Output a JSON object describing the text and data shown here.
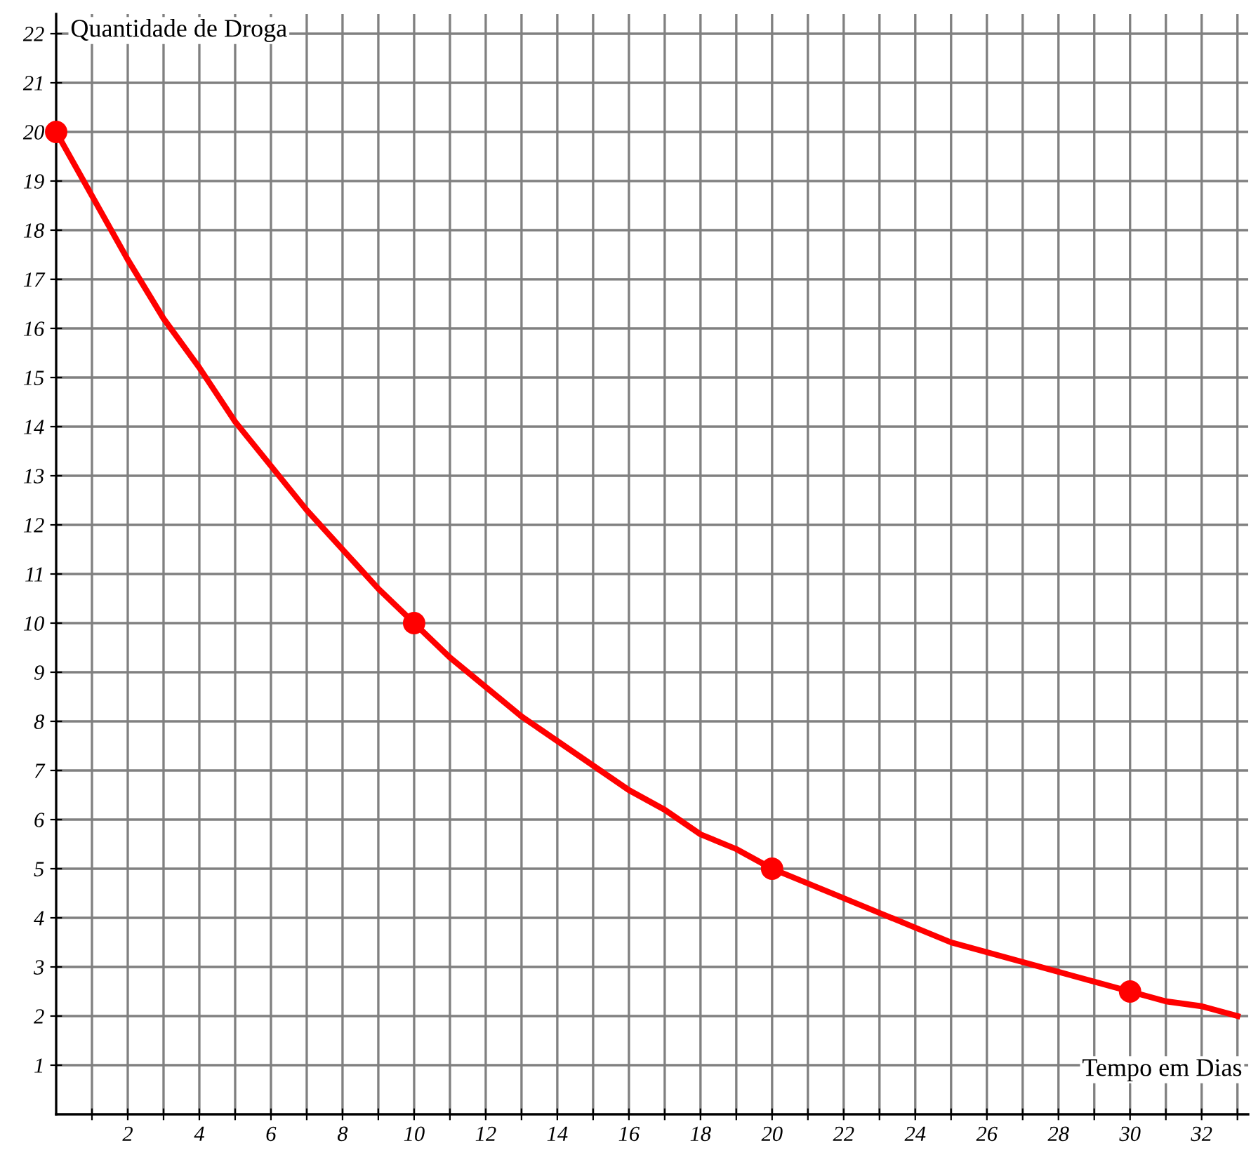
{
  "chart_data": {
    "type": "line",
    "xlabel": "Tempo em Dias",
    "ylabel": "Quantidade de Droga",
    "xlim": [
      0,
      33.3
    ],
    "ylim": [
      0,
      22.4
    ],
    "xticks": [
      {
        "value": 1,
        "label": null
      },
      2,
      {
        "value": 3,
        "label": null
      },
      4,
      {
        "value": 5,
        "label": null
      },
      6,
      {
        "value": 7,
        "label": null
      },
      8,
      {
        "value": 9,
        "label": null
      },
      10,
      {
        "value": 11,
        "label": null
      },
      12,
      {
        "value": 13,
        "label": null
      },
      14,
      {
        "value": 15,
        "label": null
      },
      16,
      {
        "value": 17,
        "label": null
      },
      18,
      {
        "value": 19,
        "label": null
      },
      20,
      {
        "value": 21,
        "label": null
      },
      22,
      {
        "value": 23,
        "label": null
      },
      24,
      {
        "value": 25,
        "label": null
      },
      26,
      {
        "value": 27,
        "label": null
      },
      28,
      {
        "value": 29,
        "label": null
      },
      30,
      {
        "value": 31,
        "label": null
      },
      32,
      {
        "value": 33,
        "label": null
      }
    ],
    "yticks": [
      1,
      2,
      3,
      4,
      5,
      6,
      7,
      8,
      9,
      10,
      11,
      12,
      13,
      14,
      15,
      16,
      17,
      18,
      19,
      20,
      21,
      22
    ],
    "grid": true,
    "legend": false,
    "series": [
      {
        "color": "#ff0000",
        "marker": "none",
        "line_style": "solid",
        "x": [
          0,
          1,
          2,
          3,
          4,
          5,
          6,
          7,
          8,
          9,
          10,
          11,
          12,
          13,
          14,
          15,
          16,
          17,
          18,
          19,
          20,
          21,
          22,
          23,
          24,
          25,
          26,
          27,
          28,
          29,
          30,
          31,
          32,
          33
        ],
        "values": [
          20,
          18.7,
          17.4,
          16.2,
          15.2,
          14.1,
          13.2,
          12.3,
          11.5,
          10.7,
          10,
          9.3,
          8.7,
          8.1,
          7.6,
          7.1,
          6.6,
          6.2,
          5.7,
          5.4,
          5,
          4.7,
          4.4,
          4.1,
          3.8,
          3.5,
          3.3,
          3.1,
          2.9,
          2.7,
          2.5,
          2.3,
          2.2,
          2.0
        ]
      },
      {
        "type": "scatter",
        "color": "#ff0000",
        "marker": "circle",
        "x": [
          0,
          10,
          20,
          30
        ],
        "values": [
          20,
          10,
          5,
          2.5
        ]
      }
    ]
  }
}
